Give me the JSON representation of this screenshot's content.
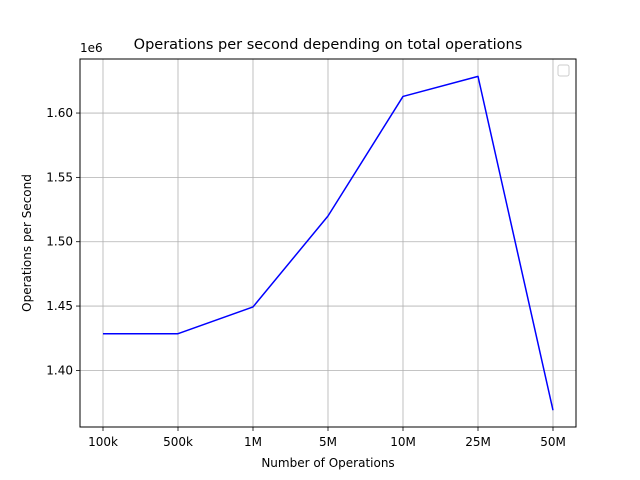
{
  "chart_data": {
    "type": "line",
    "title": "Operations per second depending on total operations",
    "xlabel": "Number of Operations",
    "ylabel": "Operations per Second",
    "y_offset_label": "1e6",
    "categories": [
      "100k",
      "500k",
      "1M",
      "5M",
      "10M",
      "25M",
      "50M"
    ],
    "series": [
      {
        "color": "#0000ff",
        "values": [
          1428500,
          1428500,
          1449300,
          1520000,
          1612900,
          1628500,
          1369000
        ]
      }
    ],
    "y_ticks": [
      1.4,
      1.45,
      1.5,
      1.55,
      1.6
    ],
    "y_tick_labels": [
      "1.40",
      "1.45",
      "1.50",
      "1.55",
      "1.60"
    ],
    "ylim": [
      1356000,
      1642000
    ],
    "grid": true,
    "legend": "top-right (empty)"
  }
}
